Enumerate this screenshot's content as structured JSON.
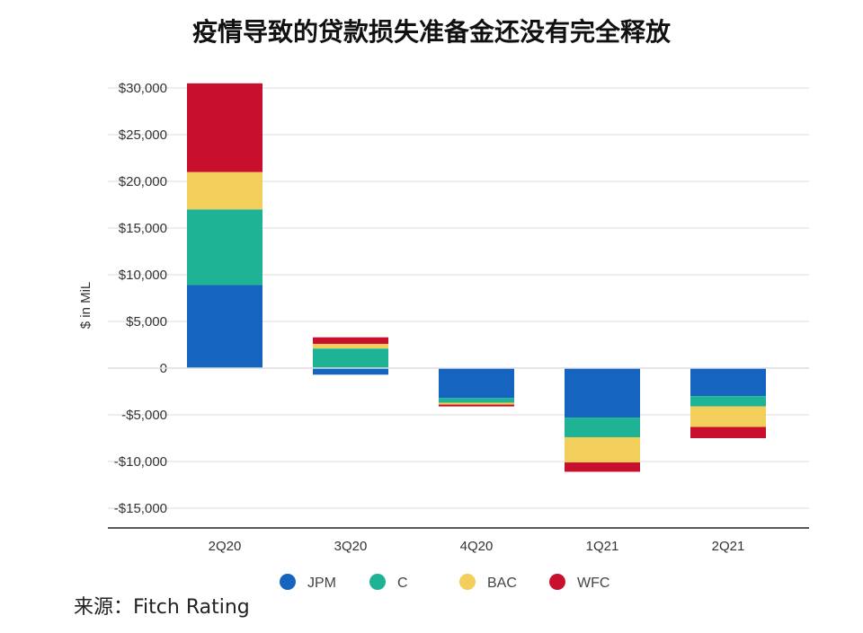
{
  "title": "疫情导致的贷款损失准备金还没有完全释放",
  "source": "来源：Fitch Rating",
  "colors": {
    "JPM": "#1565c0",
    "C": "#1db394",
    "BAC": "#f2cf5b",
    "WFC": "#c8102e",
    "grid": "#dddddd",
    "axis": "#222222"
  },
  "chart_data": {
    "type": "bar",
    "stacked": true,
    "title": "疫情导致的贷款损失准备金还没有完全释放",
    "xlabel": "",
    "ylabel": "$ in MiL",
    "ylim": [
      -15000,
      30000
    ],
    "yticks": [
      30000,
      25000,
      20000,
      15000,
      10000,
      5000,
      0,
      -5000,
      -10000,
      -15000
    ],
    "ytick_labels": [
      "$30,000",
      "$25,000",
      "$20,000",
      "$15,000",
      "$10,000",
      "$5,000",
      "0",
      "-$5,000",
      "-$10,000",
      "-$15,000"
    ],
    "categories": [
      "2Q20",
      "3Q20",
      "4Q20",
      "1Q21",
      "2Q21"
    ],
    "grid": true,
    "legend_position": "bottom",
    "series": [
      {
        "name": "JPM",
        "values": [
          8900,
          -700,
          -3200,
          -5300,
          -3000
        ]
      },
      {
        "name": "C",
        "values": [
          8100,
          2100,
          -500,
          -2100,
          -1100
        ]
      },
      {
        "name": "BAC",
        "values": [
          4000,
          500,
          -200,
          -2700,
          -2200
        ]
      },
      {
        "name": "WFC",
        "values": [
          9500,
          700,
          -200,
          -1000,
          -1200
        ]
      }
    ]
  }
}
